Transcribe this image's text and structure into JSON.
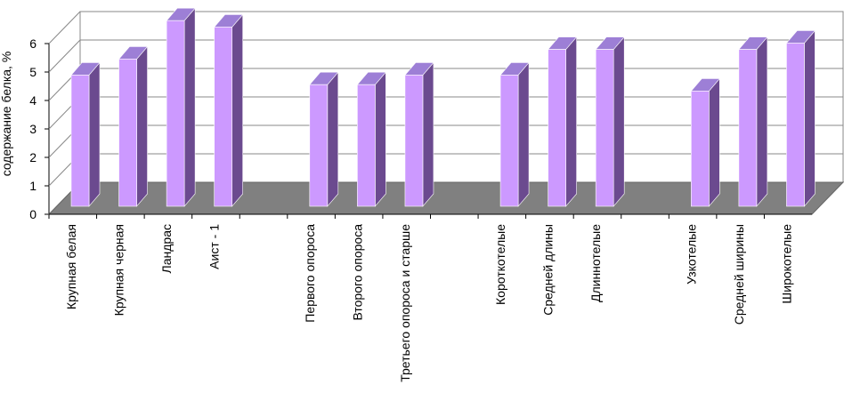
{
  "chart_data": {
    "type": "bar3d",
    "y_label": "содержание белка, %",
    "categories": [
      "Крупная белая",
      "Крупная черная",
      "Ландрас",
      "Аист - 1",
      null,
      "Первого опороса",
      "Второго опороса",
      "Третьего опороса и старше",
      null,
      "Короткотелые",
      "Средней длины",
      "Длиннотелые",
      null,
      "Узкотелые",
      "Средней ширины",
      "Широкотелые"
    ],
    "values": [
      4.1,
      4.6,
      5.8,
      5.6,
      null,
      3.8,
      3.8,
      4.1,
      null,
      4.1,
      4.9,
      4.9,
      null,
      3.6,
      4.9,
      5.1
    ],
    "color": "#cc99ff",
    "ylim": [
      0,
      6
    ],
    "yticks": [
      0,
      1,
      2,
      3,
      4,
      5,
      6
    ],
    "grid": true
  }
}
